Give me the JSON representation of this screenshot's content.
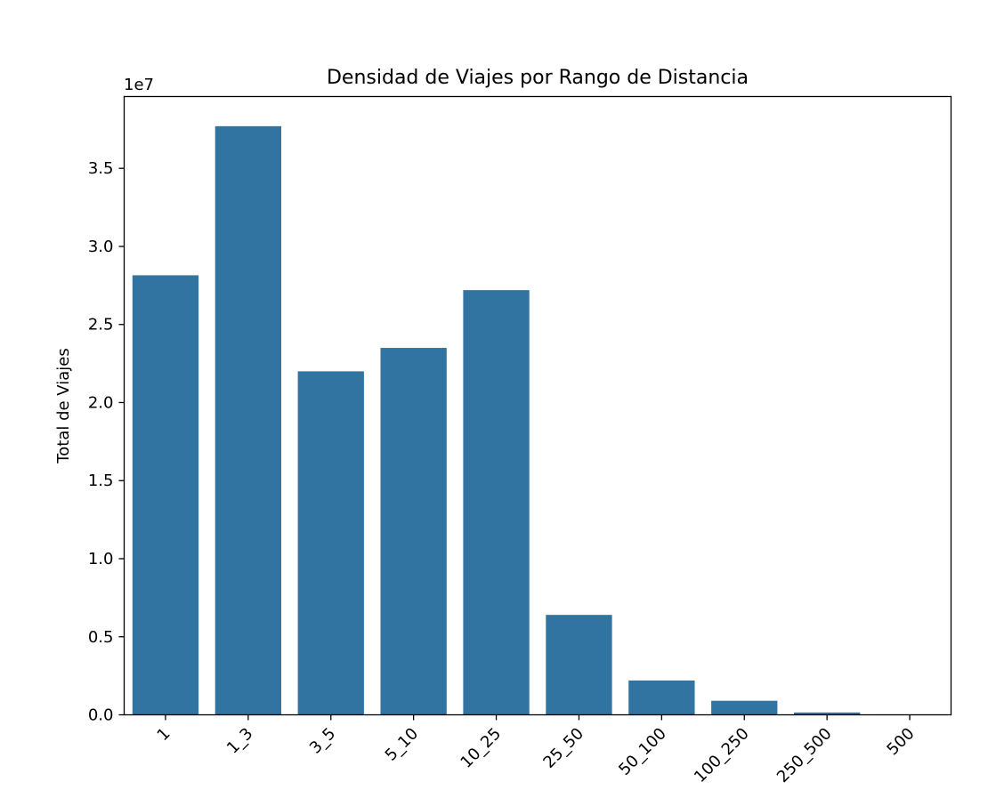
{
  "chart_data": {
    "type": "bar",
    "title": "Densidad de Viajes por Rango de Distancia",
    "xlabel": "",
    "ylabel": "Total de Viajes",
    "y_offset_label": "1e7",
    "categories": [
      "1",
      "1_3",
      "3_5",
      "5_10",
      "10_25",
      "25_50",
      "50_100",
      "100_250",
      "250_500",
      "500"
    ],
    "values": [
      28150000,
      37700000,
      22000000,
      23500000,
      27200000,
      6400000,
      2200000,
      900000,
      150000,
      30000
    ],
    "ylim": [
      0,
      39600000
    ],
    "yticks": [
      0,
      5000000,
      10000000,
      15000000,
      20000000,
      25000000,
      30000000,
      35000000
    ],
    "ytick_labels": [
      "0.0",
      "0.5",
      "1.0",
      "1.5",
      "2.0",
      "2.5",
      "3.0",
      "3.5"
    ],
    "bar_color": "#3274a1",
    "grid": false,
    "legend": "none"
  }
}
